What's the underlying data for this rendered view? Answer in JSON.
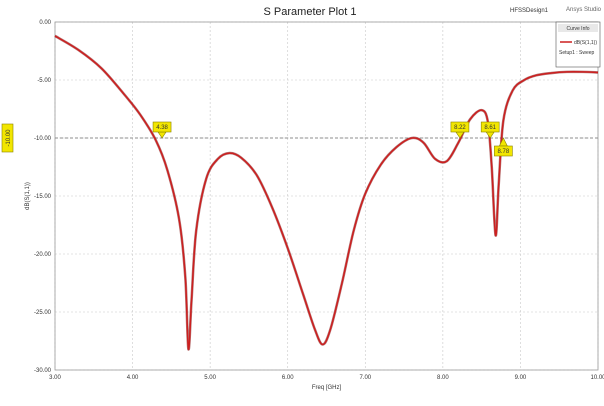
{
  "window": {
    "design_name": "HFSSDesign1",
    "brand": "Ansys Studio"
  },
  "legend": {
    "header": "Curve Info",
    "series_label": "dB(S(1,1))",
    "setup_label": "Setup1 : Sweep"
  },
  "colors": {
    "curve": "#cc1f1f",
    "marker_fill": "#f2e600",
    "marker_stroke": "#8a8200",
    "grid": "#c8c8c8",
    "hline": "#8c8c8c",
    "background": "#ffffff"
  },
  "chart_data": {
    "type": "line",
    "title": "S Parameter Plot 1",
    "xlabel": "Freq [GHz]",
    "ylabel": "dB(S(1,1))",
    "xlim": [
      3.0,
      10.0
    ],
    "ylim": [
      -30.0,
      0.0
    ],
    "x_ticks": [
      "3.00",
      "4.00",
      "5.00",
      "6.00",
      "7.00",
      "8.00",
      "9.00",
      "10.00"
    ],
    "y_ticks": [
      "0.00",
      "-5.00",
      "-10.00",
      "-15.00",
      "-20.00",
      "-25.00",
      "-30.00"
    ],
    "grid": true,
    "legend_position": "top-right",
    "reference_line": {
      "y": -10.0,
      "label": "-10.00"
    },
    "series": [
      {
        "name": "dB(S(1,1))",
        "x": [
          3.0,
          3.3,
          3.6,
          3.9,
          4.1,
          4.3,
          4.45,
          4.6,
          4.68,
          4.72,
          4.76,
          4.82,
          4.95,
          5.1,
          5.25,
          5.4,
          5.6,
          5.8,
          6.0,
          6.2,
          6.35,
          6.45,
          6.55,
          6.7,
          6.85,
          7.0,
          7.2,
          7.4,
          7.6,
          7.75,
          7.9,
          8.05,
          8.2,
          8.35,
          8.5,
          8.58,
          8.63,
          8.68,
          8.72,
          8.78,
          8.9,
          9.05,
          9.2,
          9.4,
          9.6,
          9.8,
          10.0
        ],
        "y": [
          -1.2,
          -2.4,
          -4.0,
          -6.3,
          -8.0,
          -10.2,
          -12.8,
          -17.0,
          -22.0,
          -28.2,
          -24.0,
          -18.0,
          -13.5,
          -11.8,
          -11.3,
          -11.7,
          -13.2,
          -16.0,
          -19.5,
          -23.5,
          -26.5,
          -27.8,
          -26.5,
          -22.5,
          -18.0,
          -14.8,
          -12.3,
          -10.8,
          -10.0,
          -10.4,
          -11.8,
          -12.0,
          -10.4,
          -8.4,
          -7.6,
          -8.6,
          -12.5,
          -18.4,
          -14.0,
          -8.5,
          -5.9,
          -5.0,
          -4.6,
          -4.4,
          -4.3,
          -4.3,
          -4.35
        ]
      }
    ],
    "markers": [
      {
        "label": "4.38",
        "x": 4.38,
        "y": -10.0
      },
      {
        "label": "8.22",
        "x": 8.22,
        "y": -10.0
      },
      {
        "label": "8.61",
        "x": 8.61,
        "y": -10.0
      },
      {
        "label": "8.78",
        "x": 8.78,
        "y": -10.0
      }
    ]
  }
}
